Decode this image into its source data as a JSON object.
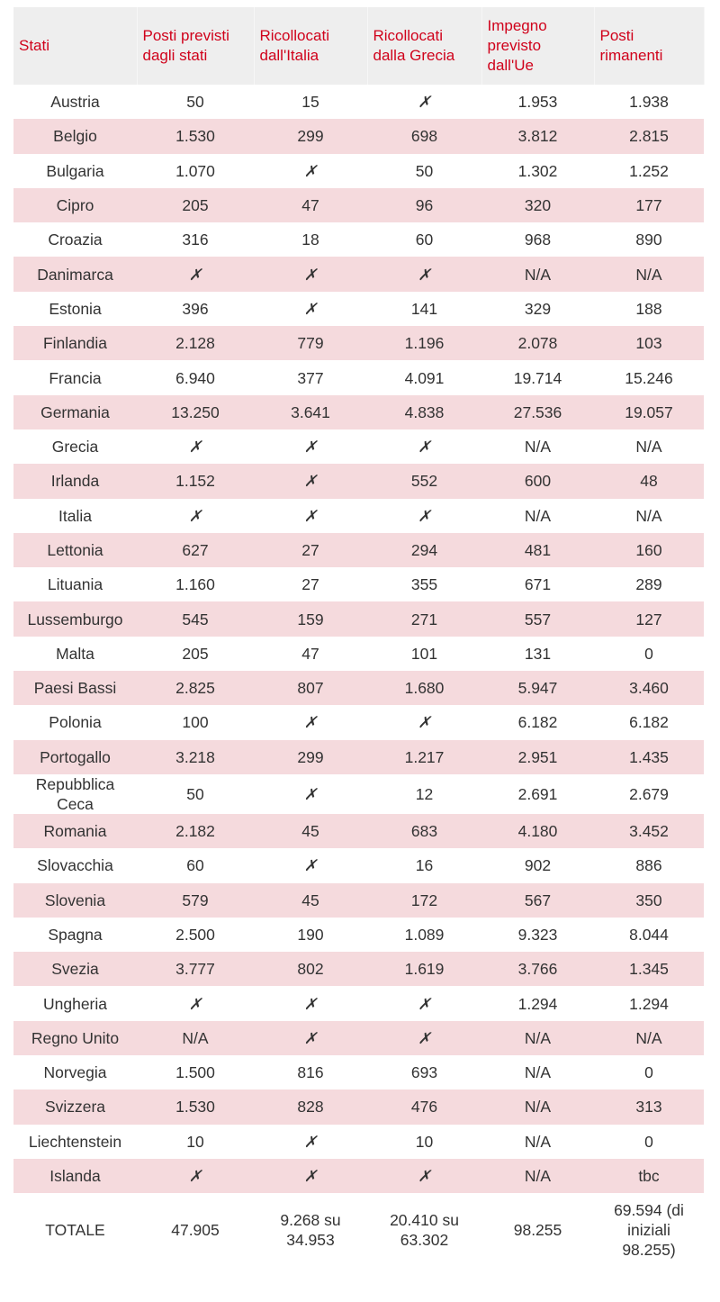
{
  "table": {
    "headers": [
      "Stati",
      "Posti previsti dagli stati",
      "Ricollocati dall'Italia",
      "Ricollocati dalla Grecia",
      "Impegno previsto dall'Ue",
      "Posti rimanenti"
    ],
    "rows": [
      [
        "Austria",
        "50",
        "15",
        "✗",
        "1.953",
        "1.938"
      ],
      [
        "Belgio",
        "1.530",
        "299",
        "698",
        "3.812",
        "2.815"
      ],
      [
        "Bulgaria",
        "1.070",
        "✗",
        "50",
        "1.302",
        "1.252"
      ],
      [
        "Cipro",
        "205",
        "47",
        "96",
        "320",
        "177"
      ],
      [
        "Croazia",
        "316",
        "18",
        "60",
        "968",
        "890"
      ],
      [
        "Danimarca",
        "✗",
        "✗",
        "✗",
        "N/A",
        "N/A"
      ],
      [
        "Estonia",
        "396",
        "✗",
        "141",
        "329",
        "188"
      ],
      [
        "Finlandia",
        "2.128",
        "779",
        "1.196",
        "2.078",
        "103"
      ],
      [
        "Francia",
        "6.940",
        "377",
        "4.091",
        "19.714",
        "15.246"
      ],
      [
        "Germania",
        "13.250",
        "3.641",
        "4.838",
        "27.536",
        "19.057"
      ],
      [
        "Grecia",
        "✗",
        "✗",
        "✗",
        "N/A",
        "N/A"
      ],
      [
        "Irlanda",
        "1.152",
        "✗",
        "552",
        "600",
        "48"
      ],
      [
        "Italia",
        "✗",
        "✗",
        "✗",
        "N/A",
        "N/A"
      ],
      [
        "Lettonia",
        "627",
        "27",
        "294",
        "481",
        "160"
      ],
      [
        "Lituania",
        "1.160",
        "27",
        "355",
        "671",
        "289"
      ],
      [
        "Lussemburgo",
        "545",
        "159",
        "271",
        "557",
        "127"
      ],
      [
        "Malta",
        "205",
        "47",
        "101",
        "131",
        "0"
      ],
      [
        "Paesi Bassi",
        "2.825",
        "807",
        "1.680",
        "5.947",
        "3.460"
      ],
      [
        "Polonia",
        "100",
        "✗",
        "✗",
        "6.182",
        "6.182"
      ],
      [
        "Portogallo",
        "3.218",
        "299",
        "1.217",
        "2.951",
        "1.435"
      ],
      [
        "Repubblica Ceca",
        "50",
        "✗",
        "12",
        "2.691",
        "2.679"
      ],
      [
        "Romania",
        "2.182",
        "45",
        "683",
        "4.180",
        "3.452"
      ],
      [
        "Slovacchia",
        "60",
        "✗",
        "16",
        "902",
        "886"
      ],
      [
        "Slovenia",
        "579",
        "45",
        "172",
        "567",
        "350"
      ],
      [
        "Spagna",
        "2.500",
        "190",
        "1.089",
        "9.323",
        "8.044"
      ],
      [
        "Svezia",
        "3.777",
        "802",
        "1.619",
        "3.766",
        "1.345"
      ],
      [
        "Ungheria",
        "✗",
        "✗",
        "✗",
        "1.294",
        "1.294"
      ],
      [
        "Regno Unito",
        "N/A",
        "✗",
        "✗",
        "N/A",
        "N/A"
      ],
      [
        "Norvegia",
        "1.500",
        "816",
        "693",
        "N/A",
        "0"
      ],
      [
        "Svizzera",
        "1.530",
        "828",
        "476",
        "N/A",
        "313"
      ],
      [
        "Liechtenstein",
        "10",
        "✗",
        "10",
        "N/A",
        "0"
      ],
      [
        "Islanda",
        "✗",
        "✗",
        "✗",
        "N/A",
        "tbc"
      ]
    ],
    "total": [
      "TOTALE",
      "47.905",
      "9.268 su 34.953",
      "20.410 su 63.302",
      "98.255",
      "69.594 (di iniziali 98.255)"
    ]
  }
}
